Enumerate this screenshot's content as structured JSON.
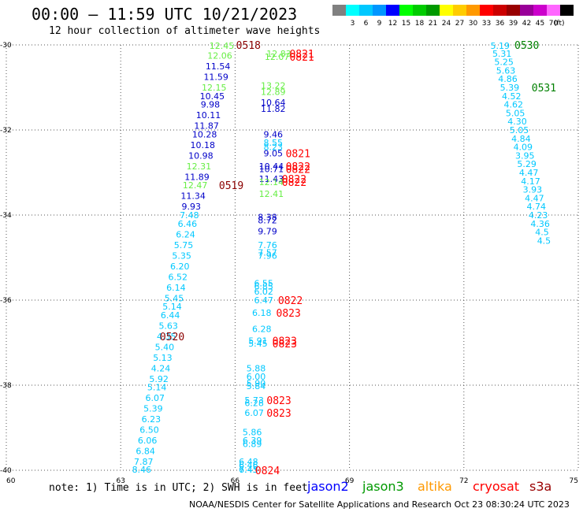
{
  "header": {
    "title": "00:00 – 11:59 UTC 10/21/2023",
    "subtitle": "12 hour collection of altimeter wave heights"
  },
  "legend": {
    "unit": "(ft)",
    "items": [
      {
        "color": "#808080",
        "label": ""
      },
      {
        "color": "#00ffff",
        "label": "3"
      },
      {
        "color": "#00c8ff",
        "label": "6"
      },
      {
        "color": "#0096ff",
        "label": "9"
      },
      {
        "color": "#0000ff",
        "label": "12"
      },
      {
        "color": "#00ff00",
        "label": "15"
      },
      {
        "color": "#00cc00",
        "label": "18"
      },
      {
        "color": "#009900",
        "label": "21"
      },
      {
        "color": "#ffff00",
        "label": "24"
      },
      {
        "color": "#ffcc00",
        "label": "27"
      },
      {
        "color": "#ff9900",
        "label": "30"
      },
      {
        "color": "#ff0000",
        "label": "33"
      },
      {
        "color": "#cc0000",
        "label": "36"
      },
      {
        "color": "#990000",
        "label": "39"
      },
      {
        "color": "#990099",
        "label": "42"
      },
      {
        "color": "#cc00cc",
        "label": "45"
      },
      {
        "color": "#ff66ff",
        "label": "70"
      },
      {
        "color": "#000000",
        "label": ""
      }
    ]
  },
  "map_axes": {
    "lon_ticks": [
      "60",
      "63",
      "66",
      "69",
      "72",
      "75"
    ],
    "lat_ticks": [
      "-30",
      "-32",
      "-34",
      "-36",
      "-38",
      "-40"
    ]
  },
  "colors": {
    "light_blue": "#00c8ff",
    "blue": "#0000c8",
    "green": "#66ee44",
    "red": "#ff0000",
    "dark_red": "#8b0000",
    "dark_green": "#008000"
  },
  "readings": [
    {
      "text": "12.45",
      "lon": 65.65,
      "lat": -30.0,
      "c": "green"
    },
    {
      "text": "12.06",
      "lon": 65.6,
      "lat": -30.25,
      "c": "green"
    },
    {
      "text": "11.54",
      "lon": 65.55,
      "lat": -30.5,
      "c": "blue"
    },
    {
      "text": "11.59",
      "lon": 65.5,
      "lat": -30.75,
      "c": "blue"
    },
    {
      "text": "12.15",
      "lon": 65.45,
      "lat": -31.0,
      "c": "green"
    },
    {
      "text": "10.45",
      "lon": 65.4,
      "lat": -31.2,
      "c": "blue"
    },
    {
      "text": "9.98",
      "lon": 65.35,
      "lat": -31.4,
      "c": "blue"
    },
    {
      "text": "10.11",
      "lon": 65.3,
      "lat": -31.65,
      "c": "blue"
    },
    {
      "text": "11.87",
      "lon": 65.25,
      "lat": -31.9,
      "c": "blue"
    },
    {
      "text": "10.28",
      "lon": 65.2,
      "lat": -32.1,
      "c": "blue"
    },
    {
      "text": "10.18",
      "lon": 65.15,
      "lat": -32.35,
      "c": "blue"
    },
    {
      "text": "10.98",
      "lon": 65.1,
      "lat": -32.6,
      "c": "blue"
    },
    {
      "text": "12.31",
      "lon": 65.05,
      "lat": -32.85,
      "c": "green"
    },
    {
      "text": "11.89",
      "lon": 65.0,
      "lat": -33.1,
      "c": "blue"
    },
    {
      "text": "12.47",
      "lon": 64.95,
      "lat": -33.3,
      "c": "green"
    },
    {
      "text": "11.34",
      "lon": 64.9,
      "lat": -33.55,
      "c": "blue"
    },
    {
      "text": "9.93",
      "lon": 64.85,
      "lat": -33.8,
      "c": "blue"
    },
    {
      "text": "7.48",
      "lon": 64.8,
      "lat": -34.0,
      "c": "light_blue"
    },
    {
      "text": "6.46",
      "lon": 64.75,
      "lat": -34.2,
      "c": "light_blue"
    },
    {
      "text": "6.24",
      "lon": 64.7,
      "lat": -34.45,
      "c": "light_blue"
    },
    {
      "text": "5.75",
      "lon": 64.65,
      "lat": -34.7,
      "c": "light_blue"
    },
    {
      "text": "5.35",
      "lon": 64.6,
      "lat": -34.95,
      "c": "light_blue"
    },
    {
      "text": "6.20",
      "lon": 64.55,
      "lat": -35.2,
      "c": "light_blue"
    },
    {
      "text": "6.52",
      "lon": 64.5,
      "lat": -35.45,
      "c": "light_blue"
    },
    {
      "text": "6.14",
      "lon": 64.45,
      "lat": -35.7,
      "c": "light_blue"
    },
    {
      "text": "5.45",
      "lon": 64.4,
      "lat": -35.95,
      "c": "light_blue"
    },
    {
      "text": "5.14",
      "lon": 64.35,
      "lat": -36.15,
      "c": "light_blue"
    },
    {
      "text": "6.44",
      "lon": 64.3,
      "lat": -36.35,
      "c": "light_blue"
    },
    {
      "text": "5.63",
      "lon": 64.25,
      "lat": -36.6,
      "c": "light_blue"
    },
    {
      "text": "4.35",
      "lon": 64.2,
      "lat": -36.85,
      "c": "light_blue"
    },
    {
      "text": "5.40",
      "lon": 64.15,
      "lat": -37.1,
      "c": "light_blue"
    },
    {
      "text": "5.13",
      "lon": 64.1,
      "lat": -37.35,
      "c": "light_blue"
    },
    {
      "text": "4.24",
      "lon": 64.05,
      "lat": -37.6,
      "c": "light_blue"
    },
    {
      "text": "5.92",
      "lon": 64.0,
      "lat": -37.85,
      "c": "light_blue"
    },
    {
      "text": "5.14",
      "lon": 63.95,
      "lat": -38.05,
      "c": "light_blue"
    },
    {
      "text": "6.07",
      "lon": 63.9,
      "lat": -38.3,
      "c": "light_blue"
    },
    {
      "text": "5.39",
      "lon": 63.85,
      "lat": -38.55,
      "c": "light_blue"
    },
    {
      "text": "6.23",
      "lon": 63.8,
      "lat": -38.8,
      "c": "light_blue"
    },
    {
      "text": "6.50",
      "lon": 63.75,
      "lat": -39.05,
      "c": "light_blue"
    },
    {
      "text": "6.06",
      "lon": 63.7,
      "lat": -39.3,
      "c": "light_blue"
    },
    {
      "text": "6.84",
      "lon": 63.65,
      "lat": -39.55,
      "c": "light_blue"
    },
    {
      "text": "7.87",
      "lon": 63.6,
      "lat": -39.8,
      "c": "light_blue"
    },
    {
      "text": "8.46",
      "lon": 63.55,
      "lat": -40.0,
      "c": "light_blue"
    },
    {
      "text": "12.83",
      "lon": 67.15,
      "lat": -30.2,
      "c": "green"
    },
    {
      "text": "12.07",
      "lon": 67.1,
      "lat": -30.28,
      "c": "green"
    },
    {
      "text": "13.22",
      "lon": 67.0,
      "lat": -30.95,
      "c": "green"
    },
    {
      "text": "12.89",
      "lon": 67.0,
      "lat": -31.1,
      "c": "green"
    },
    {
      "text": "10.64",
      "lon": 67.0,
      "lat": -31.35,
      "c": "blue"
    },
    {
      "text": "11.82",
      "lon": 67.0,
      "lat": -31.5,
      "c": "blue"
    },
    {
      "text": "9.46",
      "lon": 67.0,
      "lat": -32.1,
      "c": "blue"
    },
    {
      "text": "8.55",
      "lon": 67.0,
      "lat": -32.3,
      "c": "light_blue"
    },
    {
      "text": "8.23",
      "lon": 67.0,
      "lat": -32.4,
      "c": "light_blue"
    },
    {
      "text": "9.05",
      "lon": 67.0,
      "lat": -32.55,
      "c": "blue"
    },
    {
      "text": "10.44",
      "lon": 66.95,
      "lat": -32.85,
      "c": "blue"
    },
    {
      "text": "10.71",
      "lon": 66.95,
      "lat": -32.92,
      "c": "blue"
    },
    {
      "text": "11.43",
      "lon": 66.95,
      "lat": -33.15,
      "c": "blue"
    },
    {
      "text": "12.14",
      "lon": 66.95,
      "lat": -33.22,
      "c": "green"
    },
    {
      "text": "12.41",
      "lon": 66.95,
      "lat": -33.5,
      "c": "green"
    },
    {
      "text": "8.38",
      "lon": 66.85,
      "lat": -34.05,
      "c": "blue"
    },
    {
      "text": "8.72",
      "lon": 66.85,
      "lat": -34.12,
      "c": "blue"
    },
    {
      "text": "9.79",
      "lon": 66.85,
      "lat": -34.38,
      "c": "blue"
    },
    {
      "text": "7.76",
      "lon": 66.85,
      "lat": -34.7,
      "c": "light_blue"
    },
    {
      "text": "7.57",
      "lon": 66.85,
      "lat": -34.88,
      "c": "light_blue"
    },
    {
      "text": "7.96",
      "lon": 66.85,
      "lat": -34.95,
      "c": "light_blue"
    },
    {
      "text": "6.55",
      "lon": 66.75,
      "lat": -35.6,
      "c": "light_blue"
    },
    {
      "text": "6.85",
      "lon": 66.75,
      "lat": -35.68,
      "c": "light_blue"
    },
    {
      "text": "6.02",
      "lon": 66.75,
      "lat": -35.8,
      "c": "light_blue"
    },
    {
      "text": "6.47",
      "lon": 66.75,
      "lat": -36.0,
      "c": "light_blue"
    },
    {
      "text": "6.18",
      "lon": 66.7,
      "lat": -36.3,
      "c": "light_blue"
    },
    {
      "text": "6.28",
      "lon": 66.7,
      "lat": -36.68,
      "c": "light_blue"
    },
    {
      "text": "5.91",
      "lon": 66.6,
      "lat": -36.95,
      "c": "light_blue"
    },
    {
      "text": "5.45",
      "lon": 66.6,
      "lat": -37.02,
      "c": "light_blue"
    },
    {
      "text": "5.88",
      "lon": 66.55,
      "lat": -37.6,
      "c": "light_blue"
    },
    {
      "text": "6.00",
      "lon": 66.55,
      "lat": -37.8,
      "c": "light_blue"
    },
    {
      "text": "5.90",
      "lon": 66.55,
      "lat": -37.95,
      "c": "light_blue"
    },
    {
      "text": "5.84",
      "lon": 66.55,
      "lat": -38.02,
      "c": "light_blue"
    },
    {
      "text": "5.73",
      "lon": 66.5,
      "lat": -38.35,
      "c": "light_blue"
    },
    {
      "text": "6.28",
      "lon": 66.5,
      "lat": -38.42,
      "c": "light_blue"
    },
    {
      "text": "6.07",
      "lon": 66.5,
      "lat": -38.65,
      "c": "light_blue"
    },
    {
      "text": "5.86",
      "lon": 66.45,
      "lat": -39.1,
      "c": "light_blue"
    },
    {
      "text": "6.39",
      "lon": 66.45,
      "lat": -39.3,
      "c": "light_blue"
    },
    {
      "text": "6.89",
      "lon": 66.45,
      "lat": -39.38,
      "c": "light_blue"
    },
    {
      "text": "6.48",
      "lon": 66.35,
      "lat": -39.8,
      "c": "light_blue"
    },
    {
      "text": "6.46",
      "lon": 66.35,
      "lat": -39.88,
      "c": "light_blue"
    },
    {
      "text": "7.43",
      "lon": 66.35,
      "lat": -40.1,
      "c": "light_blue"
    },
    {
      "text": "6.45",
      "lon": 66.35,
      "lat": -40.3,
      "c": "light_blue"
    },
    {
      "text": "5.19",
      "lon": 72.95,
      "lat": -30.0,
      "c": "light_blue"
    },
    {
      "text": "5.31",
      "lon": 73.0,
      "lat": -30.2,
      "c": "light_blue"
    },
    {
      "text": "5.25",
      "lon": 73.05,
      "lat": -30.4,
      "c": "light_blue"
    },
    {
      "text": "5.63",
      "lon": 73.1,
      "lat": -30.6,
      "c": "light_blue"
    },
    {
      "text": "4.86",
      "lon": 73.15,
      "lat": -30.8,
      "c": "light_blue"
    },
    {
      "text": "5.39",
      "lon": 73.2,
      "lat": -31.0,
      "c": "light_blue"
    },
    {
      "text": "4.52",
      "lon": 73.25,
      "lat": -31.2,
      "c": "light_blue"
    },
    {
      "text": "4.62",
      "lon": 73.3,
      "lat": -31.4,
      "c": "light_blue"
    },
    {
      "text": "5.05",
      "lon": 73.35,
      "lat": -31.6,
      "c": "light_blue"
    },
    {
      "text": "4.30",
      "lon": 73.4,
      "lat": -31.8,
      "c": "light_blue"
    },
    {
      "text": "5.05",
      "lon": 73.45,
      "lat": -32.0,
      "c": "light_blue"
    },
    {
      "text": "4.84",
      "lon": 73.5,
      "lat": -32.2,
      "c": "light_blue"
    },
    {
      "text": "4.09",
      "lon": 73.55,
      "lat": -32.4,
      "c": "light_blue"
    },
    {
      "text": "3.95",
      "lon": 73.6,
      "lat": -32.6,
      "c": "light_blue"
    },
    {
      "text": "5.29",
      "lon": 73.65,
      "lat": -32.8,
      "c": "light_blue"
    },
    {
      "text": "4.47",
      "lon": 73.7,
      "lat": -33.0,
      "c": "light_blue"
    },
    {
      "text": "4.17",
      "lon": 73.75,
      "lat": -33.2,
      "c": "light_blue"
    },
    {
      "text": "3.93",
      "lon": 73.8,
      "lat": -33.4,
      "c": "light_blue"
    },
    {
      "text": "4.47",
      "lon": 73.85,
      "lat": -33.6,
      "c": "light_blue"
    },
    {
      "text": "4.74",
      "lon": 73.9,
      "lat": -33.8,
      "c": "light_blue"
    },
    {
      "text": "4.23",
      "lon": 73.95,
      "lat": -34.0,
      "c": "light_blue"
    },
    {
      "text": "4.36",
      "lon": 74.0,
      "lat": -34.2,
      "c": "light_blue"
    },
    {
      "text": "4.5",
      "lon": 74.05,
      "lat": -34.4,
      "c": "light_blue"
    },
    {
      "text": "4.5",
      "lon": 74.1,
      "lat": -34.6,
      "c": "light_blue"
    }
  ],
  "time_labels": [
    {
      "text": "0518",
      "lon": 66.35,
      "lat": -30.0,
      "c": "dark_red"
    },
    {
      "text": "0821",
      "lon": 67.75,
      "lat": -30.2,
      "c": "red"
    },
    {
      "text": "0821",
      "lon": 67.75,
      "lat": -30.28,
      "c": "red"
    },
    {
      "text": "0821",
      "lon": 67.65,
      "lat": -32.55,
      "c": "red"
    },
    {
      "text": "0822",
      "lon": 67.65,
      "lat": -32.85,
      "c": "red"
    },
    {
      "text": "0822",
      "lon": 67.65,
      "lat": -32.92,
      "c": "red"
    },
    {
      "text": "0822",
      "lon": 67.55,
      "lat": -33.15,
      "c": "red"
    },
    {
      "text": "0822",
      "lon": 67.55,
      "lat": -33.22,
      "c": "red"
    },
    {
      "text": "0519",
      "lon": 65.9,
      "lat": -33.3,
      "c": "dark_red"
    },
    {
      "text": "0822",
      "lon": 67.45,
      "lat": -36.0,
      "c": "red"
    },
    {
      "text": "0823",
      "lon": 67.4,
      "lat": -36.3,
      "c": "red"
    },
    {
      "text": "0520",
      "lon": 64.35,
      "lat": -36.85,
      "c": "dark_red"
    },
    {
      "text": "0823",
      "lon": 67.3,
      "lat": -36.95,
      "c": "red"
    },
    {
      "text": "0823",
      "lon": 67.3,
      "lat": -37.02,
      "c": "red"
    },
    {
      "text": "0823",
      "lon": 67.15,
      "lat": -38.35,
      "c": "red"
    },
    {
      "text": "0823",
      "lon": 67.15,
      "lat": -38.65,
      "c": "red"
    },
    {
      "text": "0824",
      "lon": 66.85,
      "lat": -40.3,
      "c": "red"
    },
    {
      "text": "0530",
      "lon": 73.65,
      "lat": -30.0,
      "c": "dark_green"
    },
    {
      "text": "0531",
      "lon": 74.1,
      "lat": -31.0,
      "c": "dark_green"
    }
  ],
  "footer": {
    "note": "note: 1) Time is in UTC; 2) SWH is in feet",
    "satellites": [
      {
        "name": "jason2",
        "color": "#0000ff"
      },
      {
        "name": "jason3",
        "color": "#009900"
      },
      {
        "name": "altika",
        "color": "#ff9900"
      },
      {
        "name": "cryosat",
        "color": "#ff0000"
      },
      {
        "name": "s3a",
        "color": "#990000"
      }
    ],
    "credit": "NOAA/NESDIS Center for Satellite Applications and Research    Oct 23 08:30:24 UTC 2023"
  }
}
